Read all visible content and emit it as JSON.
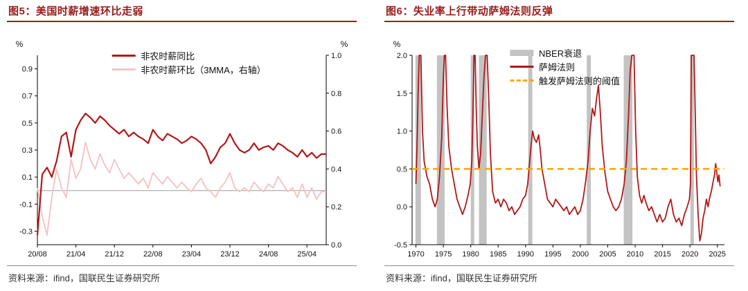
{
  "panels": [
    {
      "title": "图5：美国时薪增速环比走弱",
      "source": "资料来源：ifind，国联民生证券研究所"
    },
    {
      "title": "图6：失业率上行带动萨姆法则反弹",
      "source": "资料来源：ifind，国联民生证券研究所"
    }
  ],
  "colors": {
    "title_red": "#9a1b1b",
    "series_red": "#b01818",
    "series_pink": "#f2c6c6",
    "threshold_orange": "#ffa500",
    "recession_gray": "#c3c3c3",
    "zero_line_gray": "#9b9b9b"
  },
  "chart_data": [
    {
      "type": "line",
      "title": "图5：美国时薪增速环比走弱",
      "x_tick_labels": [
        "20/08",
        "21/04",
        "21/12",
        "22/08",
        "23/04",
        "23/12",
        "24/08",
        "25/04"
      ],
      "x_tick_indices": [
        0,
        8,
        16,
        24,
        32,
        40,
        48,
        56
      ],
      "left_axis": {
        "label": "%",
        "ticks": [
          0.9,
          0.7,
          0.5,
          0.3,
          0.1,
          -0.1,
          -0.3
        ],
        "ylim": [
          -0.4,
          1.0
        ]
      },
      "right_axis": {
        "label": "%",
        "ticks": [
          1.0,
          0.8,
          0.6,
          0.4,
          0.2,
          0.0
        ],
        "ylim": [
          0.0,
          1.0
        ]
      },
      "grid": false,
      "legend_position": "top-center",
      "zero_line": {
        "axis": "left",
        "value": 0
      },
      "series": [
        {
          "name": "非农时薪同比",
          "axis": "left",
          "color": "#b01818",
          "values": [
            -0.33,
            0.12,
            0.17,
            0.1,
            0.22,
            0.4,
            0.43,
            0.25,
            0.45,
            0.52,
            0.57,
            0.54,
            0.5,
            0.55,
            0.52,
            0.48,
            0.45,
            0.42,
            0.45,
            0.4,
            0.43,
            0.4,
            0.38,
            0.35,
            0.45,
            0.4,
            0.37,
            0.42,
            0.4,
            0.38,
            0.35,
            0.37,
            0.4,
            0.38,
            0.35,
            0.3,
            0.2,
            0.25,
            0.32,
            0.35,
            0.42,
            0.35,
            0.3,
            0.28,
            0.3,
            0.35,
            0.3,
            0.32,
            0.33,
            0.3,
            0.35,
            0.33,
            0.3,
            0.28,
            0.25,
            0.3,
            0.25,
            0.28,
            0.24,
            0.27,
            0.27
          ]
        },
        {
          "name": "非农时薪环比（3MMA，右轴）",
          "axis": "right",
          "color": "#f2c6c6",
          "values": [
            0.3,
            0.15,
            0.05,
            0.25,
            0.4,
            0.3,
            0.25,
            0.45,
            0.35,
            0.4,
            0.54,
            0.45,
            0.4,
            0.48,
            0.42,
            0.38,
            0.45,
            0.4,
            0.35,
            0.38,
            0.35,
            0.32,
            0.35,
            0.3,
            0.38,
            0.35,
            0.32,
            0.36,
            0.33,
            0.3,
            0.33,
            0.3,
            0.28,
            0.32,
            0.35,
            0.3,
            0.28,
            0.25,
            0.3,
            0.33,
            0.38,
            0.3,
            0.28,
            0.3,
            0.28,
            0.33,
            0.3,
            0.28,
            0.32,
            0.3,
            0.36,
            0.32,
            0.28,
            0.3,
            0.25,
            0.32,
            0.25,
            0.3,
            0.24,
            0.28,
            0.28
          ]
        }
      ]
    },
    {
      "type": "line",
      "title": "图6：失业率上行带动萨姆法则反弹",
      "xlim": [
        1969.3,
        2026.3
      ],
      "x_ticks": [
        1970,
        1975,
        1980,
        1985,
        1990,
        1995,
        2000,
        2005,
        2010,
        2015,
        2020,
        2025
      ],
      "y_axis": {
        "label": "%",
        "ticks": [
          2.0,
          1.5,
          1.0,
          0.5,
          0.0,
          -0.5
        ],
        "ylim": [
          -0.5,
          2.0
        ]
      },
      "grid": false,
      "legend_position": "top-center",
      "bands_name": "NBER衰退",
      "bands_color": "#c3c3c3",
      "recession_bands": [
        [
          1969.92,
          1970.92
        ],
        [
          1973.83,
          1975.25
        ],
        [
          1980.0,
          1980.5
        ],
        [
          1981.5,
          1982.92
        ],
        [
          1990.5,
          1991.25
        ],
        [
          2001.17,
          2001.92
        ],
        [
          2007.92,
          2009.5
        ],
        [
          2020.08,
          2020.42
        ]
      ],
      "threshold": {
        "name": "触发萨姆法则的阈值",
        "value": 0.5,
        "color": "#ffa500",
        "style": "dashed"
      },
      "series": [
        {
          "name": "萨姆法则",
          "color": "#b01818",
          "points": [
            [
              1970.0,
              0.3
            ],
            [
              1970.2,
              0.8
            ],
            [
              1970.4,
              1.5
            ],
            [
              1970.6,
              2.0
            ],
            [
              1970.9,
              2.0
            ],
            [
              1971.2,
              1.0
            ],
            [
              1971.5,
              0.6
            ],
            [
              1972.0,
              0.4
            ],
            [
              1972.5,
              0.3
            ],
            [
              1973.0,
              0.1
            ],
            [
              1973.5,
              0.0
            ],
            [
              1973.9,
              0.1
            ],
            [
              1974.3,
              0.4
            ],
            [
              1974.7,
              0.9
            ],
            [
              1975.0,
              1.7
            ],
            [
              1975.2,
              2.0
            ],
            [
              1975.4,
              2.0
            ],
            [
              1975.7,
              1.3
            ],
            [
              1976.0,
              0.8
            ],
            [
              1976.5,
              0.5
            ],
            [
              1977.0,
              0.3
            ],
            [
              1977.5,
              0.1
            ],
            [
              1978.0,
              0.0
            ],
            [
              1978.5,
              -0.1
            ],
            [
              1979.0,
              0.0
            ],
            [
              1979.5,
              0.15
            ],
            [
              1979.9,
              0.3
            ],
            [
              1980.2,
              0.6
            ],
            [
              1980.4,
              1.2
            ],
            [
              1980.6,
              2.0
            ],
            [
              1980.8,
              2.0
            ],
            [
              1981.0,
              1.3
            ],
            [
              1981.2,
              0.8
            ],
            [
              1981.5,
              0.5
            ],
            [
              1981.8,
              0.7
            ],
            [
              1982.1,
              1.2
            ],
            [
              1982.4,
              1.7
            ],
            [
              1982.7,
              2.0
            ],
            [
              1983.0,
              2.0
            ],
            [
              1983.3,
              1.4
            ],
            [
              1983.6,
              0.7
            ],
            [
              1984.0,
              0.2
            ],
            [
              1984.5,
              0.05
            ],
            [
              1985.0,
              0.1
            ],
            [
              1985.5,
              0.0
            ],
            [
              1986.0,
              0.1
            ],
            [
              1986.5,
              0.05
            ],
            [
              1987.0,
              -0.05
            ],
            [
              1987.5,
              0.0
            ],
            [
              1988.0,
              -0.1
            ],
            [
              1988.5,
              -0.05
            ],
            [
              1989.0,
              0.0
            ],
            [
              1989.5,
              0.1
            ],
            [
              1990.0,
              0.15
            ],
            [
              1990.4,
              0.3
            ],
            [
              1990.7,
              0.55
            ],
            [
              1991.0,
              0.8
            ],
            [
              1991.3,
              1.0
            ],
            [
              1991.6,
              0.9
            ],
            [
              1992.0,
              0.85
            ],
            [
              1992.4,
              0.95
            ],
            [
              1992.7,
              0.75
            ],
            [
              1993.0,
              0.5
            ],
            [
              1993.5,
              0.3
            ],
            [
              1994.0,
              0.1
            ],
            [
              1994.5,
              0.05
            ],
            [
              1995.0,
              0.0
            ],
            [
              1995.5,
              0.1
            ],
            [
              1996.0,
              0.05
            ],
            [
              1996.5,
              0.0
            ],
            [
              1997.0,
              -0.05
            ],
            [
              1997.5,
              0.0
            ],
            [
              1998.0,
              -0.1
            ],
            [
              1998.5,
              -0.05
            ],
            [
              1999.0,
              0.0
            ],
            [
              1999.5,
              -0.1
            ],
            [
              2000.0,
              -0.05
            ],
            [
              2000.5,
              0.1
            ],
            [
              2001.0,
              0.35
            ],
            [
              2001.4,
              0.6
            ],
            [
              2001.8,
              1.0
            ],
            [
              2002.2,
              1.3
            ],
            [
              2002.6,
              1.2
            ],
            [
              2003.0,
              1.45
            ],
            [
              2003.3,
              1.6
            ],
            [
              2003.6,
              1.3
            ],
            [
              2004.0,
              0.8
            ],
            [
              2004.5,
              0.45
            ],
            [
              2005.0,
              0.2
            ],
            [
              2005.5,
              0.1
            ],
            [
              2006.0,
              0.0
            ],
            [
              2006.5,
              -0.05
            ],
            [
              2007.0,
              0.0
            ],
            [
              2007.5,
              0.1
            ],
            [
              2008.0,
              0.3
            ],
            [
              2008.4,
              0.6
            ],
            [
              2008.8,
              1.2
            ],
            [
              2009.1,
              1.8
            ],
            [
              2009.4,
              2.0
            ],
            [
              2009.8,
              2.0
            ],
            [
              2010.1,
              1.0
            ],
            [
              2010.4,
              0.4
            ],
            [
              2010.8,
              0.15
            ],
            [
              2011.2,
              0.05
            ],
            [
              2011.6,
              0.15
            ],
            [
              2012.0,
              0.05
            ],
            [
              2012.5,
              -0.05
            ],
            [
              2013.0,
              0.0
            ],
            [
              2013.5,
              -0.1
            ],
            [
              2014.0,
              -0.2
            ],
            [
              2014.5,
              -0.1
            ],
            [
              2015.0,
              -0.2
            ],
            [
              2015.5,
              -0.15
            ],
            [
              2016.0,
              0.0
            ],
            [
              2016.5,
              0.1
            ],
            [
              2017.0,
              -0.1
            ],
            [
              2017.5,
              -0.2
            ],
            [
              2018.0,
              -0.15
            ],
            [
              2018.5,
              -0.25
            ],
            [
              2019.0,
              -0.1
            ],
            [
              2019.5,
              0.0
            ],
            [
              2019.9,
              0.1
            ],
            [
              2020.1,
              0.3
            ],
            [
              2020.25,
              2.0
            ],
            [
              2020.75,
              2.0
            ],
            [
              2021.0,
              1.1
            ],
            [
              2021.2,
              0.4
            ],
            [
              2021.5,
              -0.1
            ],
            [
              2021.8,
              -0.45
            ],
            [
              2022.1,
              -0.35
            ],
            [
              2022.4,
              -0.15
            ],
            [
              2022.7,
              -0.05
            ],
            [
              2023.0,
              0.1
            ],
            [
              2023.3,
              0.0
            ],
            [
              2023.6,
              0.12
            ],
            [
              2023.9,
              0.2
            ],
            [
              2024.2,
              0.32
            ],
            [
              2024.5,
              0.43
            ],
            [
              2024.7,
              0.57
            ],
            [
              2024.9,
              0.45
            ],
            [
              2025.1,
              0.33
            ],
            [
              2025.3,
              0.42
            ],
            [
              2025.5,
              0.27
            ]
          ]
        }
      ]
    }
  ]
}
